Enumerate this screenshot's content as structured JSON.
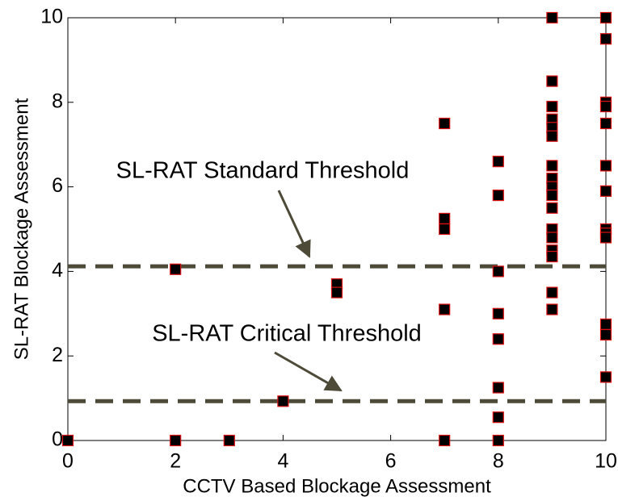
{
  "chart_data": {
    "type": "scatter",
    "xlabel": "CCTV Based Blockage Assessment",
    "ylabel": "SL-RAT Blockage Assessment",
    "x": [
      0,
      2,
      2,
      3,
      4,
      5,
      5,
      7,
      7,
      7,
      7,
      7,
      8,
      8,
      8,
      8,
      8,
      8,
      8,
      8,
      9,
      9,
      9,
      9,
      9,
      9,
      9,
      9,
      9,
      9,
      9,
      9,
      9,
      9,
      9,
      9,
      9,
      10,
      10,
      10,
      10,
      10,
      10,
      10,
      10,
      10,
      10,
      10,
      10,
      10
    ],
    "values": [
      0,
      4.05,
      0,
      0,
      0.93,
      3.7,
      3.5,
      7.5,
      5.25,
      5.0,
      3.1,
      0,
      6.6,
      5.8,
      4.0,
      3.0,
      2.4,
      1.25,
      0.55,
      0,
      10,
      8.5,
      7.9,
      7.6,
      7.4,
      7.2,
      6.5,
      6.2,
      6.0,
      5.8,
      5.5,
      5.0,
      4.8,
      4.5,
      4.35,
      3.5,
      3.1,
      10,
      9.5,
      8.0,
      7.9,
      7.5,
      6.5,
      5.9,
      5.0,
      4.9,
      4.8,
      2.75,
      2.5,
      1.5
    ],
    "color": "#000000",
    "edgecolor": "#dd1111",
    "reference_lines": [
      {
        "value": 4.12,
        "label": "SL-RAT Standard Threshold"
      },
      {
        "value": 0.93,
        "label": "SL-RAT Critical Threshold"
      }
    ],
    "reference_color": "#4d4a38",
    "xlim": [
      0,
      10
    ],
    "ylim": [
      0,
      10
    ],
    "xticks": [
      0,
      2,
      4,
      6,
      8,
      10
    ],
    "yticks": [
      0,
      2,
      4,
      6,
      8,
      10
    ]
  }
}
